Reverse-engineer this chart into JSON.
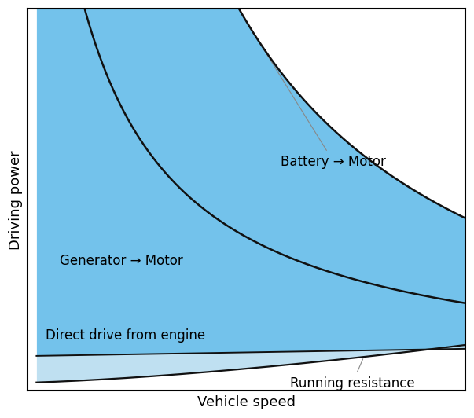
{
  "xlabel": "Vehicle speed",
  "ylabel": "Driving power",
  "title": "",
  "bg_color": "#ffffff",
  "border_color": "#000000",
  "x_range": [
    0.05,
    1.0
  ],
  "y_range": [
    0.0,
    1.0
  ],
  "battery_motor_label": "Battery → Motor",
  "generator_motor_label": "Generator → Motor",
  "direct_drive_label": "Direct drive from engine",
  "running_resistance_label": "Running resistance",
  "blue_fill_color": "#5bb8e8",
  "light_blue_fill_color": "#b8ddf0",
  "white_color": "#ffffff",
  "line_color": "#111111",
  "label_fontsize": 12,
  "axis_label_fontsize": 13
}
